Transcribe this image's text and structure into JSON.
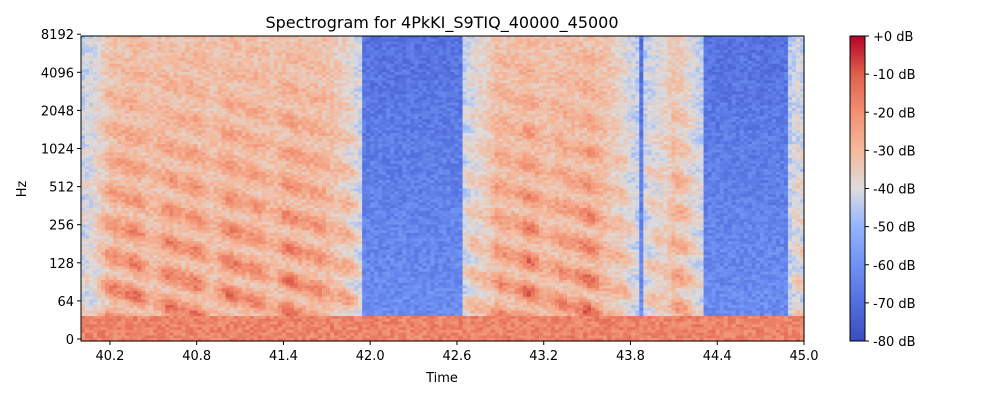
{
  "chart_data": {
    "type": "heatmap",
    "title": "Spectrogram for 4PkKI_S9TIQ_40000_45000",
    "xlabel": "Time",
    "ylabel": "Hz",
    "xlim": [
      40.0,
      45.0
    ],
    "x_ticks": [
      "40.2",
      "40.8",
      "41.4",
      "42.0",
      "42.6",
      "43.2",
      "43.8",
      "44.4",
      "45.0"
    ],
    "x_tick_values": [
      40.2,
      40.8,
      41.4,
      42.0,
      42.6,
      43.2,
      43.8,
      44.4,
      45.0
    ],
    "y_scale": "symlog",
    "y_ticks": [
      "0",
      "64",
      "128",
      "256",
      "512",
      "1024",
      "2048",
      "4096",
      "8192"
    ],
    "y_tick_values": [
      0,
      64,
      128,
      256,
      512,
      1024,
      2048,
      4096,
      8192
    ],
    "ylim": [
      0,
      11025
    ],
    "colorbar": {
      "label_ticks": [
        "+0 dB",
        "-10 dB",
        "-20 dB",
        "-30 dB",
        "-40 dB",
        "-50 dB",
        "-60 dB",
        "-70 dB",
        "-80 dB"
      ],
      "tick_values": [
        0,
        -10,
        -20,
        -30,
        -40,
        -50,
        -60,
        -70,
        -80
      ],
      "range": [
        -80,
        0
      ],
      "colormap": "coolwarm"
    },
    "speech_segments_s": [
      [
        40.0,
        41.95
      ],
      [
        42.65,
        43.85
      ],
      [
        43.9,
        44.3
      ],
      [
        44.9,
        45.0
      ]
    ],
    "colors": {
      "low": "#3b4cc0",
      "mid": "#dddddd",
      "high": "#b40426"
    }
  }
}
